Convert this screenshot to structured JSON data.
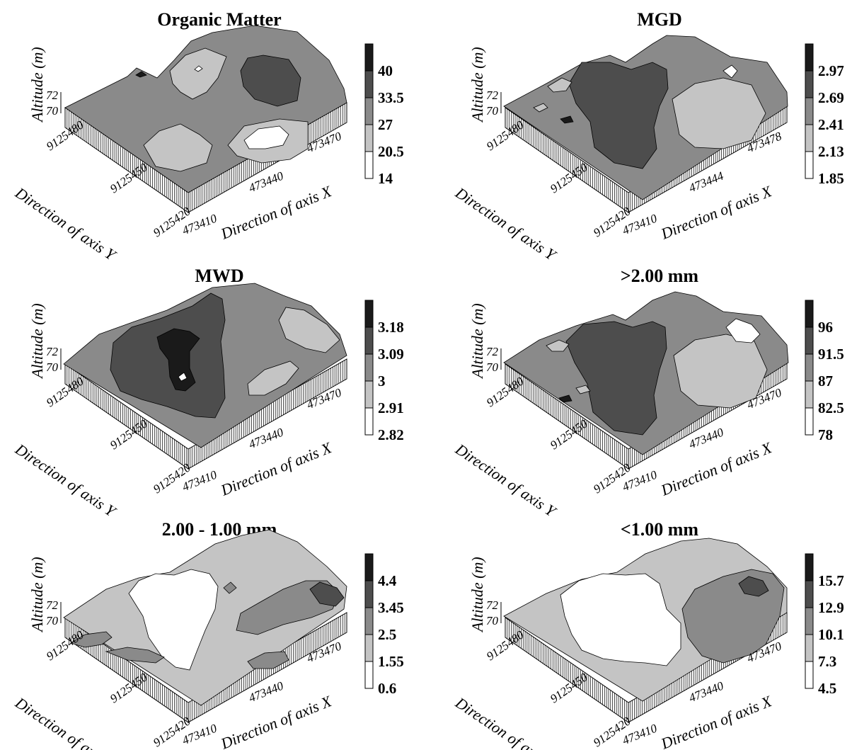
{
  "figure": {
    "axis_labels": {
      "x": "Direction of axis X",
      "y": "Direction of axis Y",
      "z": "Altitude (m)"
    },
    "z_ticks": [
      "72",
      "70"
    ]
  },
  "chart_data": [
    {
      "type": "heatmap",
      "title": "Organic Matter",
      "x_ticks": [
        "473410",
        "473440",
        "473470"
      ],
      "y_ticks": [
        "9125480",
        "9125450",
        "9125420"
      ],
      "legend_levels": [
        "40",
        "33.5",
        "27",
        "20.5",
        "14"
      ]
    },
    {
      "type": "heatmap",
      "title": "MGD",
      "x_ticks": [
        "473410",
        "473444",
        "473478"
      ],
      "y_ticks": [
        "9125480",
        "9125450",
        "9125420"
      ],
      "legend_levels": [
        "2.97",
        "2.69",
        "2.41",
        "2.13",
        "1.85"
      ]
    },
    {
      "type": "heatmap",
      "title": "MWD",
      "x_ticks": [
        "473410",
        "473440",
        "473470"
      ],
      "y_ticks": [
        "9125480",
        "9125450",
        "9125420"
      ],
      "legend_levels": [
        "3.18",
        "3.09",
        "3",
        "2.91",
        "2.82"
      ]
    },
    {
      "type": "heatmap",
      "title": ">2.00 mm",
      "x_ticks": [
        "473410",
        "473440",
        "473470"
      ],
      "y_ticks": [
        "9125480",
        "9125450",
        "9125420"
      ],
      "legend_levels": [
        "96",
        "91.5",
        "87",
        "82.5",
        "78"
      ]
    },
    {
      "type": "heatmap",
      "title": "2.00 - 1.00 mm",
      "x_ticks": [
        "473410",
        "473440",
        "473470"
      ],
      "y_ticks": [
        "9125480",
        "9125450",
        "9125420"
      ],
      "legend_levels": [
        "4.4",
        "3.45",
        "2.5",
        "1.55",
        "0.6"
      ]
    },
    {
      "type": "heatmap",
      "title": "<1.00 mm",
      "x_ticks": [
        "473410",
        "473440",
        "473470"
      ],
      "y_ticks": [
        "9125480",
        "9125450",
        "9125420"
      ],
      "legend_levels": [
        "15.7",
        "12.9",
        "10.1",
        "7.3",
        "4.5"
      ]
    }
  ],
  "palette": {
    "level5": "#1a1a1a",
    "level4": "#4d4d4d",
    "level3": "#8a8a8a",
    "level2": "#c4c4c4",
    "level1": "#ffffff",
    "stroke": "#000000"
  }
}
